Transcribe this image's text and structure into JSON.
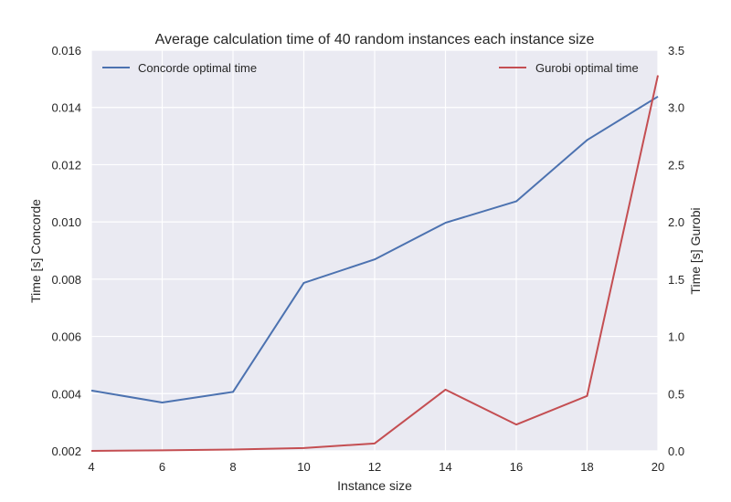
{
  "chart_data": {
    "type": "line",
    "title": "Average calculation time of 40 random instances each instance size",
    "xlabel": "Instance size",
    "x": [
      4,
      6,
      8,
      10,
      12,
      14,
      16,
      18,
      20
    ],
    "xlim": [
      4,
      20
    ],
    "xticks": [
      "4",
      "6",
      "8",
      "10",
      "12",
      "14",
      "16",
      "18",
      "20"
    ],
    "grid": true,
    "background": "#EAEAF2",
    "axes": {
      "left": {
        "label": "Time [s] Concorde",
        "ylim": [
          0.002,
          0.016
        ],
        "ticks": [
          "0.002",
          "0.004",
          "0.006",
          "0.008",
          "0.010",
          "0.012",
          "0.014",
          "0.016"
        ]
      },
      "right": {
        "label": "Time [s] Gurobi",
        "ylim": [
          0.0,
          3.5
        ],
        "ticks": [
          "0.0",
          "0.5",
          "1.0",
          "1.5",
          "2.0",
          "2.5",
          "3.0",
          "3.5"
        ]
      }
    },
    "series": [
      {
        "name": "Concorde optimal time",
        "axis": "left",
        "color": "#4C72B0",
        "values": [
          0.00411,
          0.00369,
          0.00406,
          0.00787,
          0.00869,
          0.00997,
          0.01072,
          0.01286,
          0.01438
        ],
        "legend": "top-left"
      },
      {
        "name": "Gurobi optimal time",
        "axis": "right",
        "color": "#C44E52",
        "values": [
          0.0,
          0.005,
          0.012,
          0.025,
          0.065,
          0.535,
          0.23,
          0.48,
          3.28
        ],
        "legend": "top-right"
      }
    ]
  }
}
